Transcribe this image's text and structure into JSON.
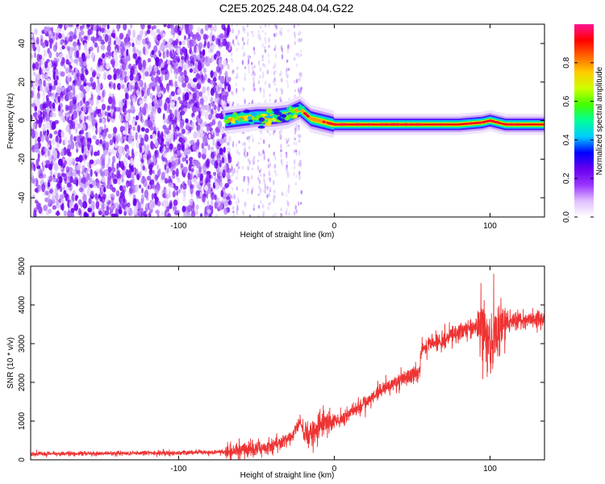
{
  "title": "C2E5.2025.248.04.04.G22",
  "chart_data": [
    {
      "type": "heatmap",
      "xlabel": "Height of straight line (km)",
      "ylabel": "Frequency (Hz)",
      "xlim": [
        -195,
        135
      ],
      "ylim": [
        -50,
        50
      ],
      "xticks": [
        -100,
        0,
        100
      ],
      "xtick_labels": [
        "-100",
        "0",
        "100"
      ],
      "yticks": [
        -40,
        -20,
        0,
        20,
        40
      ],
      "ytick_labels": [
        "-40",
        "-20",
        "0",
        "20",
        "40"
      ],
      "colorbar": {
        "label": "Normalized spectral amplitude",
        "range": [
          0,
          1
        ],
        "ticks": [
          0.0,
          0.2,
          0.4,
          0.6,
          0.8
        ],
        "tick_labels": [
          "0.0",
          "0.2",
          "0.4",
          "0.6",
          "0.8"
        ],
        "colors": [
          "#ffffff",
          "#e0c0ff",
          "#9933ff",
          "#6600ee",
          "#0000ff",
          "#00ccff",
          "#00ff99",
          "#44ff00",
          "#ccff00",
          "#ffcc00",
          "#ff6600",
          "#ff0000",
          "#ff1493"
        ]
      },
      "signal_trace": {
        "x": [
          -70,
          -60,
          -50,
          -40,
          -30,
          -22,
          -15,
          -10,
          -5,
          0,
          20,
          40,
          60,
          80,
          95,
          100,
          110,
          135
        ],
        "freq": [
          0,
          1,
          2,
          2,
          3,
          6,
          1,
          0,
          -1,
          -2,
          -2,
          -2,
          -2,
          -2,
          -1,
          0,
          -2,
          -2
        ]
      }
    },
    {
      "type": "line",
      "xlabel": "Height of straight line (km)",
      "ylabel": "SNR (10 * v/v)",
      "xlim": [
        -195,
        135
      ],
      "ylim": [
        0,
        5000
      ],
      "xticks": [
        -100,
        0,
        100
      ],
      "xtick_labels": [
        "-100",
        "0",
        "100"
      ],
      "yticks": [
        0,
        1000,
        2000,
        3000,
        4000,
        5000
      ],
      "ytick_labels": [
        "0",
        "1000",
        "2000",
        "3000",
        "4000",
        "5000"
      ],
      "color": "#ee3333",
      "trend": {
        "x": [
          -195,
          -100,
          -70,
          -50,
          -40,
          -30,
          -25,
          -22,
          -18,
          -10,
          0,
          10,
          20,
          30,
          40,
          50,
          55,
          56,
          70,
          80,
          90,
          95,
          100,
          105,
          110,
          120,
          135
        ],
        "y": [
          150,
          180,
          200,
          280,
          380,
          500,
          700,
          1000,
          600,
          900,
          1000,
          1200,
          1500,
          1800,
          2000,
          2200,
          2300,
          2900,
          3100,
          3300,
          3450,
          3500,
          3000,
          3400,
          3500,
          3600,
          3650
        ]
      }
    }
  ]
}
